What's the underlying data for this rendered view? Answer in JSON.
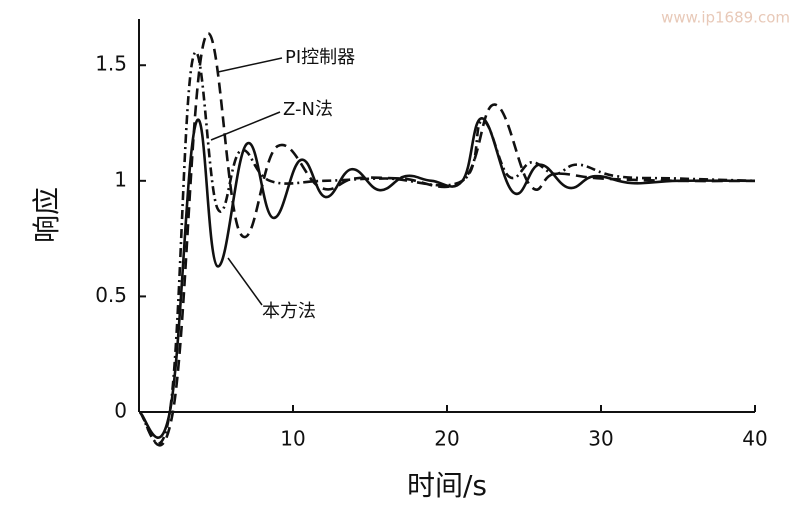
{
  "chart_data": {
    "type": "line",
    "xlabel": "时间/s",
    "ylabel": "响应",
    "watermark": "www.ip1689.com",
    "xlim": [
      0,
      40
    ],
    "ylim": [
      0,
      1.7
    ],
    "xticks": [
      10,
      20,
      30,
      40
    ],
    "yticks": [
      0,
      0.5,
      1,
      1.5
    ],
    "grid": false,
    "series": [
      {
        "name": "本方法",
        "color": "#111111",
        "dash": "none",
        "x": [
          0,
          2,
          3.7,
          5.1,
          7.0,
          8.7,
          10.5,
          12.1,
          13.8,
          15.6,
          17.3,
          19,
          21,
          22.3,
          24.3,
          26,
          27.9,
          29.6,
          32,
          35,
          40
        ],
        "values": [
          0,
          0,
          1.25,
          0.63,
          1.16,
          0.84,
          1.09,
          0.93,
          1.05,
          0.96,
          1.02,
          1.0,
          1.0,
          1.27,
          0.95,
          1.07,
          0.97,
          1.02,
          0.99,
          1.0,
          1.0
        ]
      },
      {
        "name": "PI控制器",
        "color": "#111111",
        "dash": "11,6",
        "x": [
          0,
          2.2,
          4.3,
          6.6,
          9.0,
          11.8,
          14,
          17,
          21,
          23.1,
          25.4,
          27,
          30,
          35,
          40
        ],
        "values": [
          0,
          0,
          1.62,
          0.77,
          1.15,
          0.97,
          1.01,
          1.01,
          1.0,
          1.33,
          0.98,
          1.03,
          1.01,
          1.0,
          1.0
        ]
      },
      {
        "name": "Z-N法",
        "color": "#111111",
        "dash": "9,4,2,4",
        "x": [
          0,
          2,
          3.5,
          5.1,
          6.6,
          8.5,
          12,
          16,
          21,
          22.3,
          24,
          25.5,
          27,
          28.5,
          31,
          35,
          40
        ],
        "values": [
          0,
          0,
          1.53,
          0.88,
          1.13,
          1.0,
          1.0,
          1.01,
          1.0,
          1.26,
          1.02,
          1.08,
          1.03,
          1.07,
          1.02,
          1.01,
          1.0
        ]
      }
    ]
  }
}
